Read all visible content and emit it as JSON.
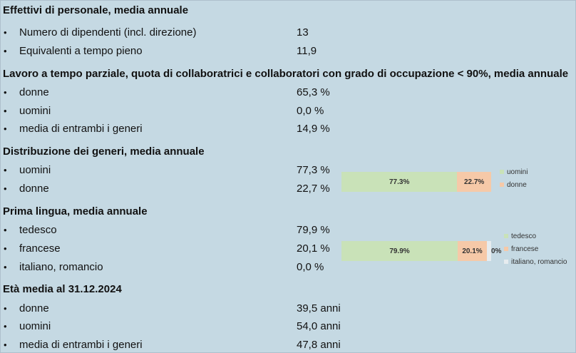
{
  "sections": [
    {
      "title": "Effettivi di personale, media annuale",
      "rows": [
        {
          "label": "Numero di dipendenti (incl. direzione)",
          "value": "13"
        },
        {
          "label": "Equivalenti a tempo pieno",
          "value": "11,9"
        }
      ]
    },
    {
      "title": "Lavoro a tempo parziale, quota di collaboratrici e collaboratori con grado di occupazione < 90%, media annuale",
      "rows": [
        {
          "label": "donne",
          "value": "65,3 %"
        },
        {
          "label": "uomini",
          "value": "0,0 %"
        },
        {
          "label": "media di entrambi i generi",
          "value": "14,9 %"
        }
      ]
    },
    {
      "title": "Distribuzione dei generi, media annuale",
      "rows": [
        {
          "label": "uomini",
          "value": "77,3 %"
        },
        {
          "label": "donne",
          "value": "22,7 %"
        }
      ]
    },
    {
      "title": "Prima lingua, media annuale",
      "rows": [
        {
          "label": "tedesco",
          "value": "79,9 %"
        },
        {
          "label": "francese",
          "value": "20,1 %"
        },
        {
          "label": "italiano, romancio",
          "value": "0,0 %"
        }
      ]
    },
    {
      "title": "Età media al 31.12.2024",
      "rows": [
        {
          "label": "donne",
          "value": "39,5 anni"
        },
        {
          "label": "uomini",
          "value": "54,0 anni"
        },
        {
          "label": "media di entrambi i generi",
          "value": "47,8 anni"
        }
      ]
    }
  ],
  "bullet_glyph": "•",
  "chart_data": [
    {
      "type": "bar",
      "orientation": "horizontal-stacked",
      "series": [
        {
          "name": "uomini",
          "value": 77.3,
          "label": "77.3%",
          "color": "#c9e2b8"
        },
        {
          "name": "donne",
          "value": 22.7,
          "label": "22.7%",
          "color": "#f6c9a8"
        }
      ],
      "legend_position": "right",
      "grid": false
    },
    {
      "type": "bar",
      "orientation": "horizontal-stacked",
      "series": [
        {
          "name": "tedesco",
          "value": 79.9,
          "label": "79.9%",
          "color": "#c9e2b8"
        },
        {
          "name": "francese",
          "value": 20.1,
          "label": "20.1%",
          "color": "#f6c9a8"
        },
        {
          "name": "italiano, romancio",
          "value": 0.0,
          "label": "0%",
          "color": "#e6ecef"
        }
      ],
      "legend_position": "right",
      "grid": false
    }
  ]
}
